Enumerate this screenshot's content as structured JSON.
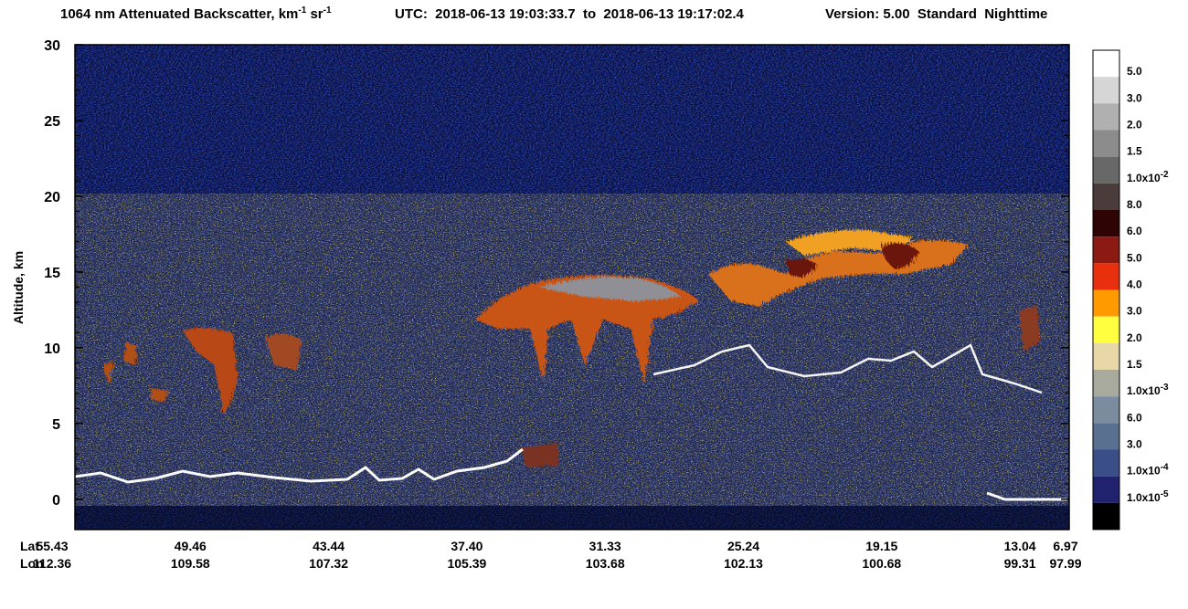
{
  "chart_data": {
    "type": "curtain",
    "title": {
      "text": "1064 nm Attenuated Backscatter, km",
      "unit_exp": "-1",
      "unit2": "sr",
      "unit2_exp": "-1",
      "utc": "UTC:  2018-06-13 19:03:33.7  to  2018-06-13 19:17:02.4",
      "version": "Version: 5.00  Standard  Nighttime"
    },
    "y_label": "Altitude, km",
    "ylim": [
      -2,
      30
    ],
    "yticks": [
      0,
      5,
      10,
      15,
      20,
      25,
      30
    ],
    "x_rows": [
      {
        "name": "Lat",
        "labels": [
          "55.43",
          "49.46",
          "43.44",
          "37.40",
          "31.33",
          "25.24",
          "19.15",
          "13.04",
          "6.97"
        ]
      },
      {
        "name": "Lon",
        "labels": [
          "112.36",
          "109.58",
          "107.32",
          "105.39",
          "103.68",
          "102.13",
          "100.68",
          "99.31",
          "97.99"
        ]
      }
    ],
    "colorbar": {
      "colors": [
        "#ffffff",
        "#d6d6d6",
        "#b0b0b0",
        "#8c8c8c",
        "#686868",
        "#4a3c3a",
        "#2e0404",
        "#8a1a12",
        "#e8300e",
        "#ff9a00",
        "#ffff40",
        "#e8d8a8",
        "#a8aa9e",
        "#7a8c9e",
        "#5a7090",
        "#3a4e88",
        "#20226e",
        "#000000"
      ],
      "labels": [
        "5.0",
        "3.0",
        "2.0",
        "1.5",
        {
          "base": "1.0x10",
          "exp": "-2"
        },
        "8.0",
        "6.0",
        "5.0",
        "4.0",
        "3.0",
        "2.0",
        "1.5",
        {
          "base": "1.0x10",
          "exp": "-3"
        },
        "6.0",
        "3.0",
        {
          "base": "1.0x10",
          "exp": "-4"
        },
        {
          "base": "1.0x10",
          "exp": "-5"
        }
      ]
    }
  }
}
